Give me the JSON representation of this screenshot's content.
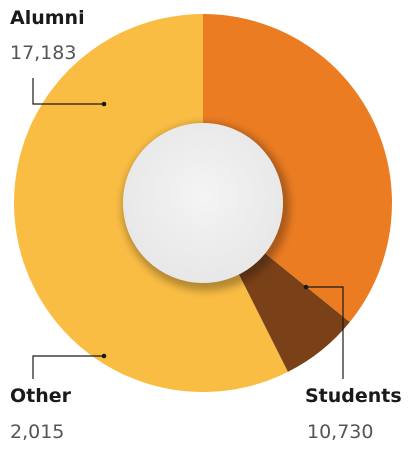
{
  "chart_data": {
    "type": "pie",
    "variant": "donut",
    "categories": [
      "Students",
      "Other",
      "Alumni"
    ],
    "values": [
      10730,
      2015,
      17183
    ],
    "value_labels": [
      "10,730",
      "2,015",
      "17,183"
    ],
    "colors": [
      "#EB7C22",
      "#7A4119",
      "#FABD44"
    ],
    "title": "",
    "legend": "none"
  }
}
